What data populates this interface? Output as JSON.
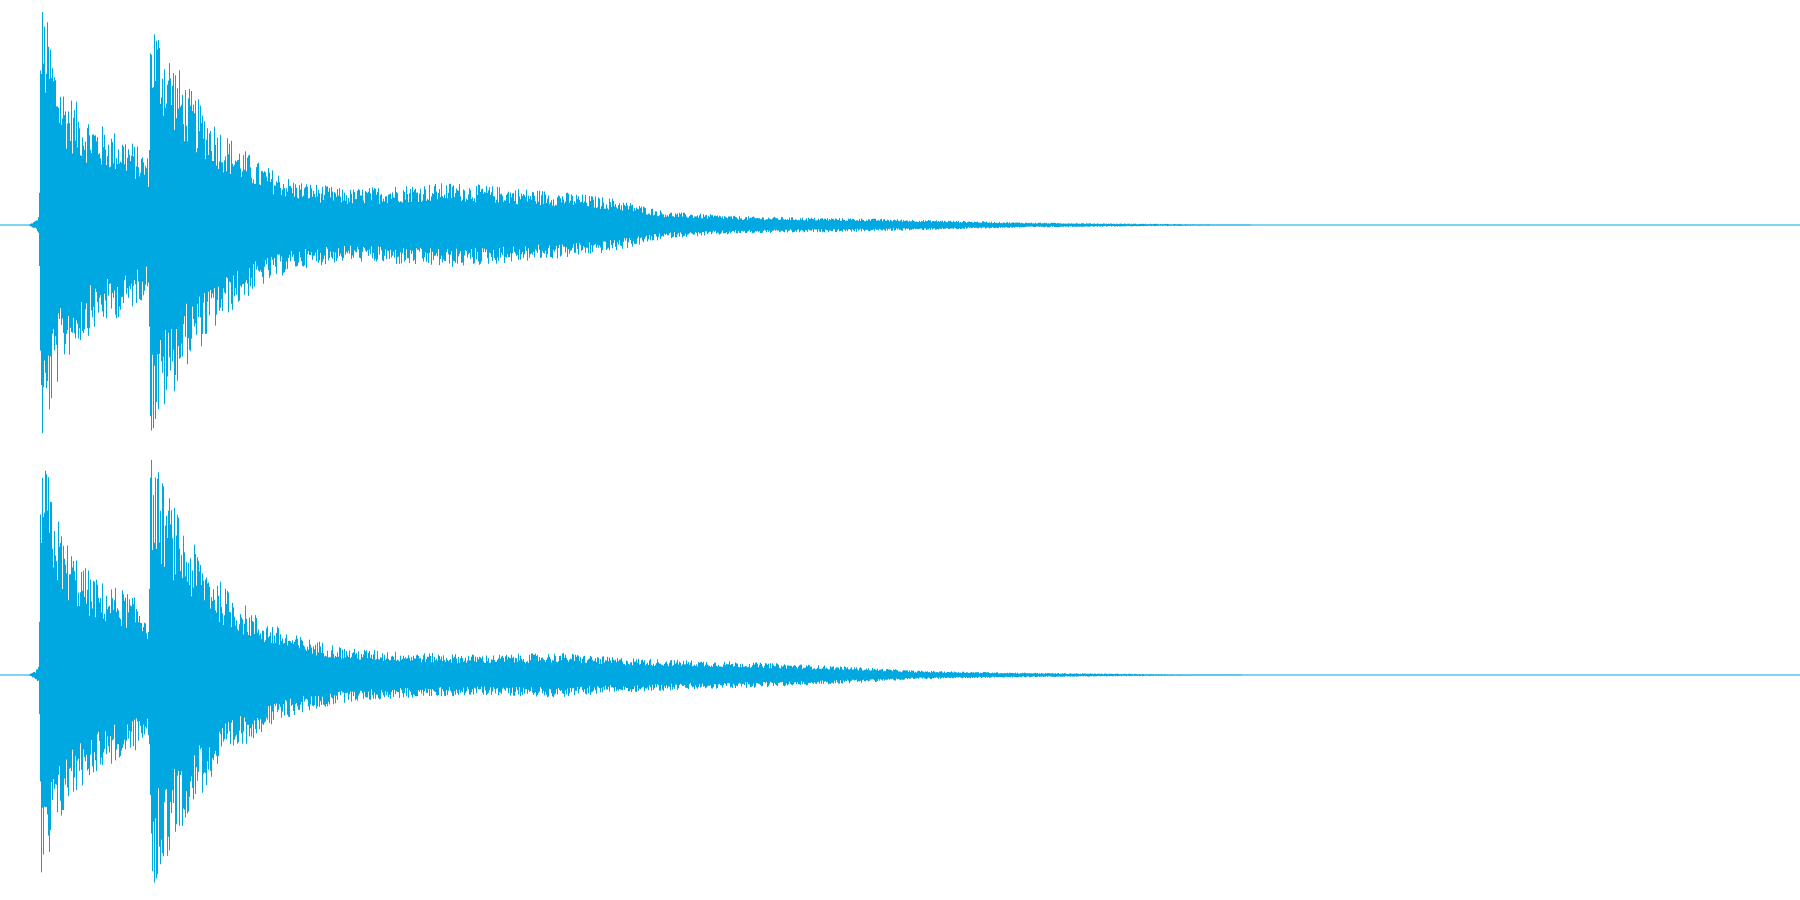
{
  "waveform": {
    "color": "#00a8e1",
    "channels": [
      {
        "name": "channel-1",
        "envelope": [
          [
            0.0,
            0.0
          ],
          [
            0.004,
            0.02
          ],
          [
            0.006,
            0.04
          ],
          [
            0.007,
            1.0
          ],
          [
            0.01,
            0.94
          ],
          [
            0.015,
            0.75
          ],
          [
            0.02,
            0.62
          ],
          [
            0.03,
            0.52
          ],
          [
            0.04,
            0.45
          ],
          [
            0.055,
            0.4
          ],
          [
            0.066,
            0.32
          ],
          [
            0.068,
            0.3
          ],
          [
            0.069,
            0.97
          ],
          [
            0.075,
            0.86
          ],
          [
            0.09,
            0.62
          ],
          [
            0.11,
            0.42
          ],
          [
            0.13,
            0.28
          ],
          [
            0.15,
            0.2
          ],
          [
            0.18,
            0.16
          ],
          [
            0.21,
            0.18
          ],
          [
            0.24,
            0.19
          ],
          [
            0.27,
            0.17
          ],
          [
            0.3,
            0.15
          ],
          [
            0.33,
            0.12
          ],
          [
            0.36,
            0.06
          ],
          [
            0.4,
            0.04
          ],
          [
            0.43,
            0.035
          ],
          [
            0.47,
            0.03
          ],
          [
            0.52,
            0.02
          ],
          [
            0.56,
            0.012
          ],
          [
            0.6,
            0.008
          ],
          [
            0.64,
            0.005
          ],
          [
            0.67,
            0.003
          ],
          [
            0.7,
            0.0
          ],
          [
            1.0,
            0.0
          ]
        ]
      },
      {
        "name": "channel-2",
        "envelope": [
          [
            0.0,
            0.0
          ],
          [
            0.004,
            0.02
          ],
          [
            0.006,
            0.04
          ],
          [
            0.007,
            1.0
          ],
          [
            0.01,
            0.94
          ],
          [
            0.015,
            0.75
          ],
          [
            0.02,
            0.62
          ],
          [
            0.03,
            0.5
          ],
          [
            0.04,
            0.42
          ],
          [
            0.055,
            0.38
          ],
          [
            0.066,
            0.3
          ],
          [
            0.068,
            0.28
          ],
          [
            0.069,
            1.0
          ],
          [
            0.075,
            0.88
          ],
          [
            0.09,
            0.62
          ],
          [
            0.11,
            0.4
          ],
          [
            0.13,
            0.26
          ],
          [
            0.15,
            0.18
          ],
          [
            0.18,
            0.12
          ],
          [
            0.22,
            0.1
          ],
          [
            0.26,
            0.09
          ],
          [
            0.3,
            0.1
          ],
          [
            0.33,
            0.08
          ],
          [
            0.36,
            0.07
          ],
          [
            0.4,
            0.06
          ],
          [
            0.43,
            0.05
          ],
          [
            0.47,
            0.035
          ],
          [
            0.5,
            0.02
          ],
          [
            0.55,
            0.012
          ],
          [
            0.6,
            0.007
          ],
          [
            0.64,
            0.004
          ],
          [
            0.67,
            0.002
          ],
          [
            0.7,
            0.0
          ],
          [
            1.0,
            0.0
          ]
        ]
      }
    ]
  }
}
